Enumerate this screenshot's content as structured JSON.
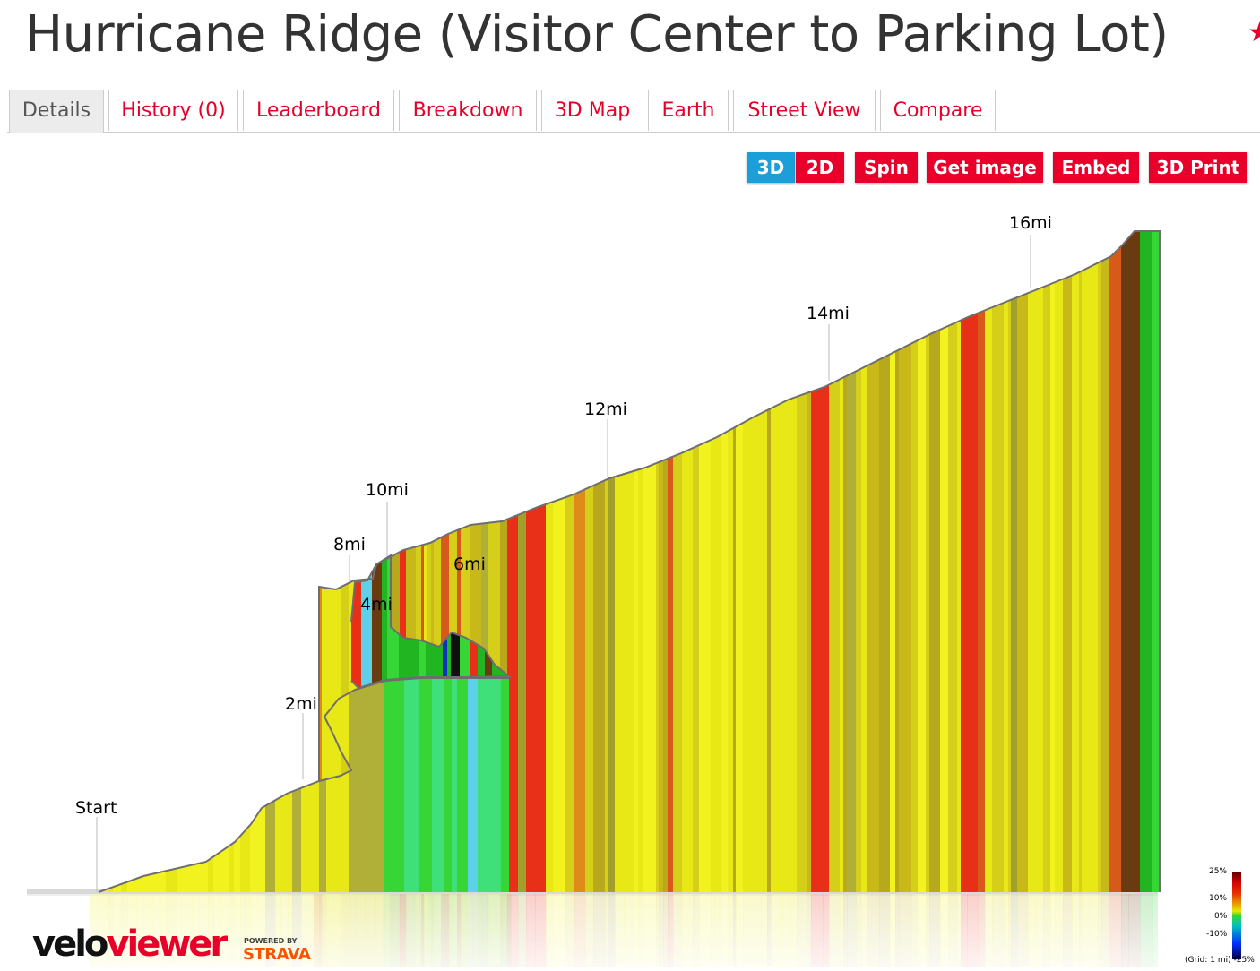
{
  "page": {
    "title": "Hurricane Ridge (Visitor Center to Parking Lot)",
    "star_icon": "star-icon"
  },
  "tabs": [
    {
      "label": "Details",
      "active": true
    },
    {
      "label": "History (0)"
    },
    {
      "label": "Leaderboard"
    },
    {
      "label": "Breakdown"
    },
    {
      "label": "3D Map"
    },
    {
      "label": "Earth"
    },
    {
      "label": "Street View"
    },
    {
      "label": "Compare"
    }
  ],
  "toolbar": {
    "btn_3d": "3D",
    "btn_2d": "2D",
    "btn_spin": "Spin",
    "btn_get_image": "Get image",
    "btn_embed": "Embed",
    "btn_3d_print": "3D Print"
  },
  "markers": {
    "start": "Start",
    "m2": "2mi",
    "m4": "4mi",
    "m6": "6mi",
    "m8": "8mi",
    "m10": "10mi",
    "m12": "12mi",
    "m14": "14mi",
    "m16": "16mi"
  },
  "legend": {
    "l25": "25%",
    "l10": "10%",
    "l0": "0%",
    "lm10": "-10%",
    "grid": "(Grid: 1 mi)",
    "lm25": "-25%"
  },
  "branding": {
    "velo": "velo",
    "viewer": "viewer",
    "powered_by": "POWERED BY",
    "strava": "STRAVA"
  },
  "colors": {
    "accent": "#e8002a",
    "active_blue": "#1a9fd8",
    "grade_palette": [
      "#e8e817",
      "#d6cf1a",
      "#f2f21f",
      "#c9b81a",
      "#b8a81e",
      "#e08a1a",
      "#d85a1a",
      "#e83018",
      "#6a3a10",
      "#36d636",
      "#21b521",
      "#3fe07a",
      "#5ed0e8",
      "#b0b038",
      "#a0a02a"
    ]
  }
}
